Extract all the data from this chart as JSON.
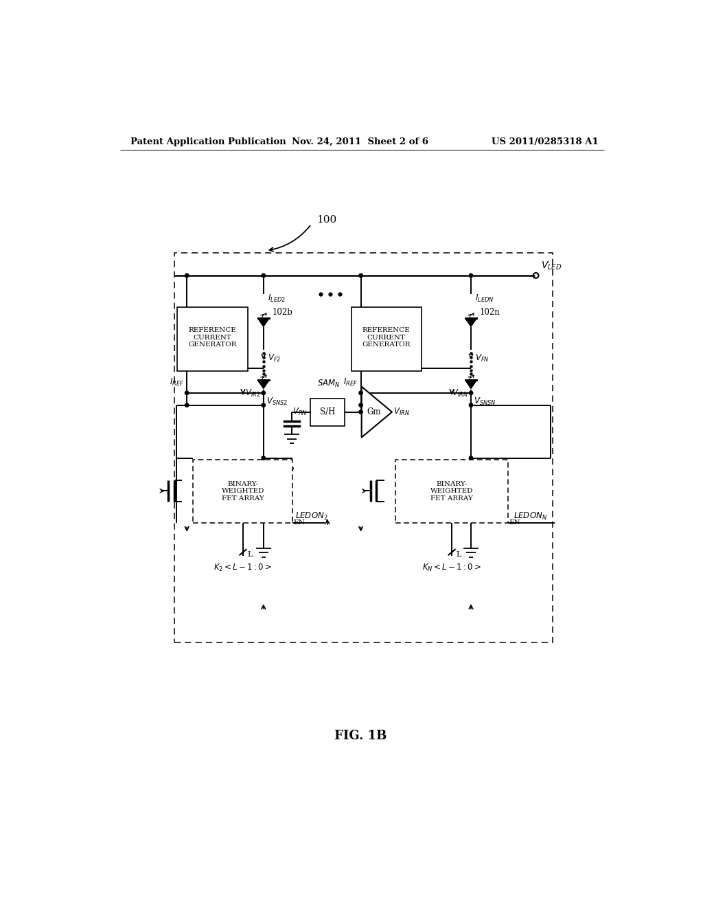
{
  "bg_color": "#ffffff",
  "header_left": "Patent Application Publication",
  "header_mid": "Nov. 24, 2011  Sheet 2 of 6",
  "header_right": "US 2011/0285318 A1",
  "figure_label": "FIG. 1B"
}
